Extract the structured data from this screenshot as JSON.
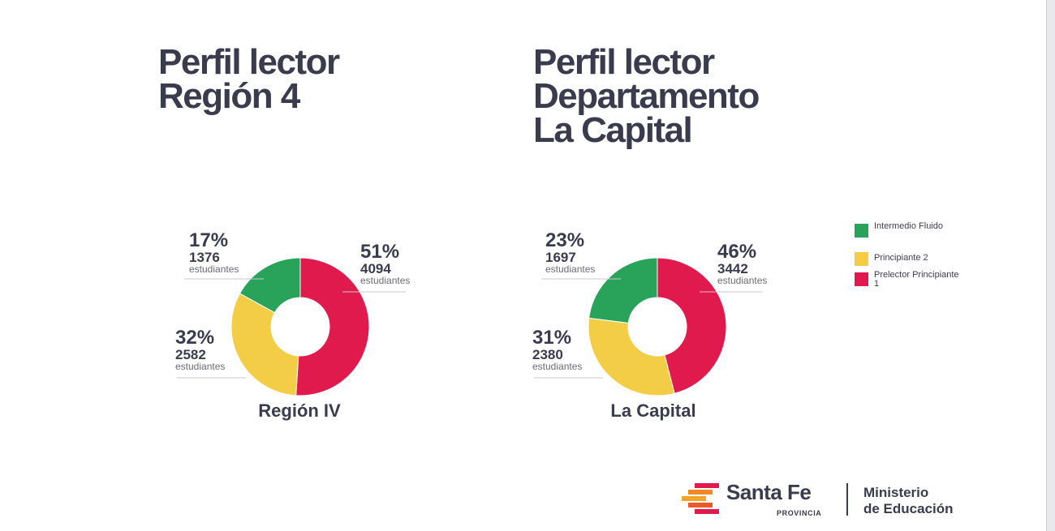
{
  "titles": {
    "left": [
      "Perfil lector",
      "Región 4"
    ],
    "right": [
      "Perfil lector",
      "Departamento",
      "La Capital"
    ]
  },
  "colors": {
    "intermedio": "#29a35a",
    "principiante2": "#f2cd45",
    "prelector": "#e11a4e"
  },
  "legend": [
    {
      "label": "Intermedio Fluido",
      "color": "#29a35a"
    },
    {
      "label": "Principiante 2",
      "color": "#f2cd45"
    },
    {
      "label": "Prelector Principiante 1",
      "color": "#e11a4e"
    }
  ],
  "chart_data": [
    {
      "type": "pie",
      "title": "Región IV",
      "categories": [
        "Prelector Principiante 1",
        "Principiante 2",
        "Intermedio Fluido"
      ],
      "values": [
        51,
        32,
        17
      ],
      "counts": [
        4094,
        2582,
        1376
      ],
      "pct_labels": [
        "51%",
        "32%",
        "17%"
      ],
      "count_labels": [
        "4094",
        "2582",
        "1376"
      ],
      "unit": "estudiantes",
      "legend_position": "right"
    },
    {
      "type": "pie",
      "title": "La Capital",
      "categories": [
        "Prelector Principiante 1",
        "Principiante 2",
        "Intermedio Fluido"
      ],
      "values": [
        46,
        31,
        23
      ],
      "counts": [
        3442,
        2380,
        1697
      ],
      "pct_labels": [
        "46%",
        "31%",
        "23%"
      ],
      "count_labels": [
        "3442",
        "2380",
        "1697"
      ],
      "unit": "estudiantes",
      "legend_position": "right"
    }
  ],
  "footer": {
    "brand": "Santa Fe",
    "brand_sub": "PROVINCIA",
    "ministry": [
      "Ministerio",
      "de Educación"
    ]
  }
}
